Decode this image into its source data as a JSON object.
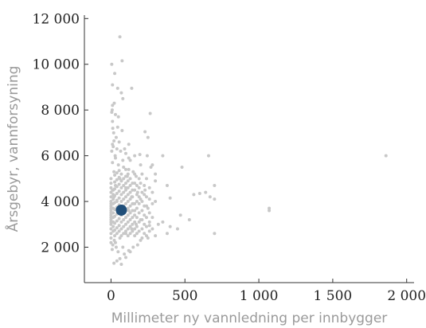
{
  "chart_data": {
    "type": "scatter",
    "xlabel": "Millimeter ny vannledning per innbygger",
    "ylabel": "Årsgebyr, vannforsyning",
    "xlim": [
      -180,
      2050
    ],
    "ylim": [
      450,
      12150
    ],
    "x_ticks": [
      0,
      500,
      1000,
      1500,
      2000
    ],
    "x_tick_labels": [
      "0",
      "500",
      "1 000",
      "1 500",
      "2 000"
    ],
    "y_ticks": [
      2000,
      4000,
      6000,
      8000,
      10000,
      12000
    ],
    "y_tick_labels": [
      "2 000",
      "4 000",
      "6 000",
      "8 000",
      "10 000",
      "12 000"
    ],
    "grid": false,
    "colors": {
      "points": "#c8c8c8",
      "highlight": "#1f4e79"
    },
    "series": [
      {
        "role": "municipalities",
        "points": [
          [
            60,
            11200
          ],
          [
            5,
            10000
          ],
          [
            75,
            10150
          ],
          [
            25,
            9600
          ],
          [
            10,
            9100
          ],
          [
            45,
            8950
          ],
          [
            140,
            8950
          ],
          [
            70,
            8750
          ],
          [
            80,
            8500
          ],
          [
            10,
            8200
          ],
          [
            5,
            7900
          ],
          [
            50,
            7700
          ],
          [
            265,
            7850
          ],
          [
            10,
            7500
          ],
          [
            45,
            7250
          ],
          [
            230,
            7050
          ],
          [
            250,
            6800
          ],
          [
            20,
            6650
          ],
          [
            10,
            6500
          ],
          [
            40,
            6300
          ],
          [
            100,
            6100
          ],
          [
            160,
            6000
          ],
          [
            195,
            6050
          ],
          [
            245,
            6000
          ],
          [
            350,
            6000
          ],
          [
            660,
            6000
          ],
          [
            1860,
            6000
          ],
          [
            130,
            5800
          ],
          [
            200,
            5600
          ],
          [
            270,
            5500
          ],
          [
            480,
            5500
          ],
          [
            300,
            5200
          ],
          [
            300,
            4900
          ],
          [
            200,
            4800
          ],
          [
            120,
            5400
          ],
          [
            170,
            5100
          ],
          [
            230,
            4500
          ],
          [
            380,
            4700
          ],
          [
            700,
            4700
          ],
          [
            640,
            4400
          ],
          [
            600,
            4350
          ],
          [
            560,
            4300
          ],
          [
            670,
            4200
          ],
          [
            700,
            4100
          ],
          [
            400,
            4150
          ],
          [
            300,
            4000
          ],
          [
            200,
            4100
          ],
          [
            150,
            3900
          ],
          [
            250,
            3700
          ],
          [
            1070,
            3700
          ],
          [
            1070,
            3600
          ],
          [
            470,
            3400
          ],
          [
            530,
            3200
          ],
          [
            350,
            3100
          ],
          [
            320,
            3000
          ],
          [
            260,
            2950
          ],
          [
            400,
            2900
          ],
          [
            450,
            2800
          ],
          [
            700,
            2600
          ],
          [
            380,
            2600
          ],
          [
            300,
            2500
          ],
          [
            250,
            2400
          ],
          [
            200,
            2300
          ],
          [
            180,
            2100
          ],
          [
            150,
            2000
          ],
          [
            120,
            1850
          ],
          [
            90,
            1700
          ],
          [
            60,
            1500
          ],
          [
            40,
            1400
          ],
          [
            20,
            1300
          ],
          [
            70,
            1250
          ],
          [
            100,
            1550
          ],
          [
            130,
            1800
          ],
          [
            80,
            2000
          ],
          [
            30,
            2200
          ],
          [
            60,
            2400
          ],
          [
            100,
            2600
          ],
          [
            140,
            2800
          ],
          [
            170,
            3000
          ],
          [
            200,
            3200
          ],
          [
            160,
            3400
          ],
          [
            120,
            3600
          ],
          [
            80,
            3800
          ],
          [
            40,
            4000
          ],
          [
            20,
            4200
          ],
          [
            10,
            4500
          ],
          [
            30,
            4700
          ],
          [
            70,
            4900
          ],
          [
            110,
            5100
          ],
          [
            150,
            5300
          ],
          [
            180,
            4400
          ],
          [
            140,
            4200
          ],
          [
            100,
            4600
          ],
          [
            60,
            5000
          ],
          [
            20,
            5300
          ],
          [
            50,
            5600
          ],
          [
            80,
            5800
          ],
          [
            120,
            5900
          ],
          [
            30,
            5900
          ],
          [
            0,
            2800
          ],
          [
            0,
            3000
          ],
          [
            0,
            3200
          ],
          [
            0,
            3400
          ],
          [
            0,
            3600
          ],
          [
            0,
            3800
          ],
          [
            0,
            4000
          ],
          [
            0,
            4200
          ],
          [
            0,
            4400
          ],
          [
            0,
            4600
          ],
          [
            0,
            4800
          ],
          [
            0,
            5000
          ],
          [
            0,
            2600
          ],
          [
            0,
            2400
          ],
          [
            0,
            2200
          ],
          [
            0,
            3100
          ],
          [
            0,
            3300
          ],
          [
            0,
            3500
          ],
          [
            0,
            3700
          ],
          [
            0,
            3900
          ],
          [
            15,
            2700
          ],
          [
            15,
            2900
          ],
          [
            15,
            3100
          ],
          [
            15,
            3300
          ],
          [
            15,
            3500
          ],
          [
            15,
            3700
          ],
          [
            15,
            3900
          ],
          [
            15,
            4100
          ],
          [
            15,
            4300
          ],
          [
            15,
            4500
          ],
          [
            25,
            2500
          ],
          [
            25,
            2750
          ],
          [
            25,
            3050
          ],
          [
            25,
            3350
          ],
          [
            25,
            3650
          ],
          [
            25,
            3950
          ],
          [
            25,
            4250
          ],
          [
            25,
            4550
          ],
          [
            25,
            4850
          ],
          [
            25,
            5150
          ],
          [
            40,
            2600
          ],
          [
            40,
            2850
          ],
          [
            40,
            3150
          ],
          [
            40,
            3450
          ],
          [
            40,
            3750
          ],
          [
            40,
            4050
          ],
          [
            40,
            4350
          ],
          [
            40,
            4650
          ],
          [
            40,
            4950
          ],
          [
            40,
            5250
          ],
          [
            55,
            2700
          ],
          [
            55,
            2950
          ],
          [
            55,
            3250
          ],
          [
            55,
            3550
          ],
          [
            55,
            3850
          ],
          [
            55,
            4150
          ],
          [
            55,
            4450
          ],
          [
            55,
            4750
          ],
          [
            55,
            5050
          ],
          [
            55,
            5350
          ],
          [
            70,
            2500
          ],
          [
            70,
            2800
          ],
          [
            70,
            3100
          ],
          [
            70,
            3400
          ],
          [
            70,
            3700
          ],
          [
            70,
            4000
          ],
          [
            70,
            4300
          ],
          [
            70,
            4600
          ],
          [
            70,
            4900
          ],
          [
            70,
            5200
          ],
          [
            85,
            2600
          ],
          [
            85,
            2900
          ],
          [
            85,
            3200
          ],
          [
            85,
            3500
          ],
          [
            85,
            3800
          ],
          [
            85,
            4100
          ],
          [
            85,
            4400
          ],
          [
            85,
            4700
          ],
          [
            85,
            5000
          ],
          [
            85,
            5500
          ],
          [
            100,
            2700
          ],
          [
            100,
            3000
          ],
          [
            100,
            3300
          ],
          [
            100,
            3600
          ],
          [
            100,
            3900
          ],
          [
            100,
            4200
          ],
          [
            100,
            4500
          ],
          [
            100,
            4800
          ],
          [
            100,
            5100
          ],
          [
            100,
            5400
          ],
          [
            115,
            2500
          ],
          [
            115,
            2800
          ],
          [
            115,
            3100
          ],
          [
            115,
            3400
          ],
          [
            115,
            3700
          ],
          [
            115,
            4000
          ],
          [
            115,
            4300
          ],
          [
            115,
            4600
          ],
          [
            115,
            4900
          ],
          [
            115,
            5200
          ],
          [
            130,
            2600
          ],
          [
            130,
            2900
          ],
          [
            130,
            3200
          ],
          [
            130,
            3500
          ],
          [
            130,
            3800
          ],
          [
            130,
            4100
          ],
          [
            130,
            4400
          ],
          [
            130,
            4700
          ],
          [
            130,
            5000
          ],
          [
            145,
            2700
          ],
          [
            145,
            3000
          ],
          [
            145,
            3300
          ],
          [
            145,
            3600
          ],
          [
            145,
            3900
          ],
          [
            145,
            4200
          ],
          [
            145,
            4500
          ],
          [
            145,
            4800
          ],
          [
            160,
            2500
          ],
          [
            160,
            2800
          ],
          [
            160,
            3100
          ],
          [
            160,
            3600
          ],
          [
            160,
            3900
          ],
          [
            160,
            4500
          ],
          [
            160,
            4800
          ],
          [
            160,
            5200
          ],
          [
            175,
            2600
          ],
          [
            175,
            2900
          ],
          [
            175,
            3300
          ],
          [
            175,
            3700
          ],
          [
            175,
            4000
          ],
          [
            175,
            4300
          ],
          [
            175,
            4700
          ],
          [
            190,
            2700
          ],
          [
            190,
            3100
          ],
          [
            190,
            3500
          ],
          [
            190,
            3900
          ],
          [
            190,
            4200
          ],
          [
            190,
            4600
          ],
          [
            190,
            5000
          ],
          [
            210,
            2400
          ],
          [
            210,
            2800
          ],
          [
            210,
            3200
          ],
          [
            210,
            3600
          ],
          [
            210,
            4000
          ],
          [
            210,
            4400
          ],
          [
            210,
            5200
          ],
          [
            225,
            2600
          ],
          [
            225,
            3000
          ],
          [
            225,
            3400
          ],
          [
            225,
            3800
          ],
          [
            225,
            4300
          ],
          [
            225,
            4700
          ],
          [
            240,
            2500
          ],
          [
            240,
            2900
          ],
          [
            240,
            3300
          ],
          [
            240,
            3800
          ],
          [
            240,
            4200
          ],
          [
            240,
            5000
          ],
          [
            260,
            2700
          ],
          [
            260,
            3100
          ],
          [
            260,
            3500
          ],
          [
            260,
            4100
          ],
          [
            260,
            4600
          ],
          [
            280,
            2800
          ],
          [
            280,
            3300
          ],
          [
            280,
            3900
          ],
          [
            280,
            4400
          ],
          [
            280,
            5600
          ],
          [
            8,
            1900
          ],
          [
            12,
            2100
          ],
          [
            22,
            2300
          ],
          [
            35,
            2000
          ],
          [
            48,
            1800
          ],
          [
            5,
            6200
          ],
          [
            15,
            6400
          ],
          [
            28,
            6000
          ],
          [
            18,
            7000
          ],
          [
            12,
            7200
          ],
          [
            35,
            6800
          ],
          [
            8,
            8000
          ],
          [
            22,
            8300
          ],
          [
            55,
            6600
          ],
          [
            65,
            6200
          ],
          [
            92,
            6300
          ],
          [
            120,
            6500
          ],
          [
            75,
            7100
          ],
          [
            30,
            7800
          ],
          [
            10,
            5700
          ]
        ]
      },
      {
        "role": "highlighted",
        "points": [
          [
            70,
            3620
          ]
        ]
      }
    ]
  }
}
